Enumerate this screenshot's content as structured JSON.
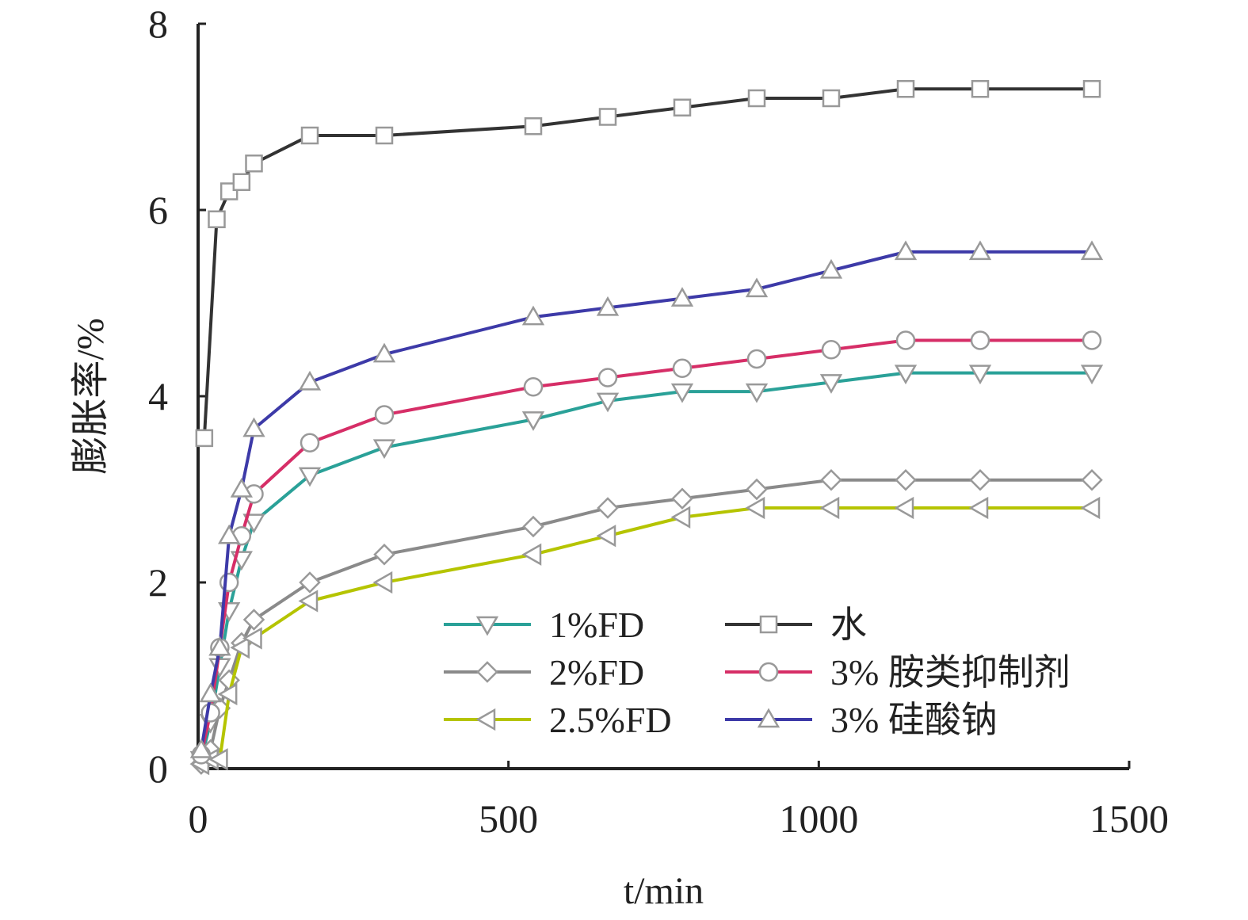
{
  "chart_data": {
    "type": "line",
    "xlabel": "t/min",
    "ylabel": "膨胀率/%",
    "xlim": [
      0,
      1500
    ],
    "ylim": [
      0,
      8
    ],
    "xticks": [
      "0",
      "500",
      "1000",
      "1500"
    ],
    "yticks": [
      "0",
      "2",
      "4",
      "6",
      "8"
    ],
    "grid": false,
    "legend_position": "bottom-right",
    "series": [
      {
        "name": "1%FD",
        "color": "#2aa198",
        "marker": "triangle-down",
        "x": [
          5,
          20,
          35,
          50,
          70,
          90,
          180,
          300,
          540,
          660,
          780,
          900,
          1020,
          1140,
          1260,
          1440
        ],
        "y": [
          0.1,
          0.5,
          1.1,
          1.7,
          2.25,
          2.65,
          3.15,
          3.45,
          3.75,
          3.95,
          4.05,
          4.05,
          4.15,
          4.25,
          4.25,
          4.25
        ]
      },
      {
        "name": "2%FD",
        "color": "#8a8a8a",
        "marker": "diamond",
        "x": [
          5,
          20,
          35,
          50,
          70,
          90,
          180,
          300,
          540,
          660,
          780,
          900,
          1020,
          1140,
          1260,
          1440
        ],
        "y": [
          0.05,
          0.2,
          0.65,
          0.95,
          1.35,
          1.6,
          2.0,
          2.3,
          2.6,
          2.8,
          2.9,
          3.0,
          3.1,
          3.1,
          3.1,
          3.1
        ]
      },
      {
        "name": "2.5%FD",
        "color": "#b5c400",
        "marker": "triangle-left",
        "x": [
          5,
          20,
          35,
          50,
          70,
          90,
          180,
          300,
          540,
          660,
          780,
          900,
          1020,
          1140,
          1260,
          1440
        ],
        "y": [
          0.05,
          0.1,
          0.1,
          0.8,
          1.3,
          1.4,
          1.8,
          2.0,
          2.3,
          2.5,
          2.7,
          2.8,
          2.8,
          2.8,
          2.8,
          2.8
        ]
      },
      {
        "name": "水",
        "color": "#333333",
        "marker": "square",
        "x": [
          10,
          30,
          50,
          70,
          90,
          180,
          300,
          540,
          660,
          780,
          900,
          1020,
          1140,
          1260,
          1440
        ],
        "y": [
          3.55,
          5.9,
          6.2,
          6.3,
          6.5,
          6.8,
          6.8,
          6.9,
          7.0,
          7.1,
          7.2,
          7.2,
          7.3,
          7.3,
          7.3
        ]
      },
      {
        "name": "3% 胺类抑制剂",
        "color": "#d62e67",
        "marker": "circle",
        "x": [
          5,
          20,
          35,
          50,
          70,
          90,
          180,
          300,
          540,
          660,
          780,
          900,
          1020,
          1140,
          1260,
          1440
        ],
        "y": [
          0.15,
          0.6,
          1.3,
          2.0,
          2.5,
          2.95,
          3.5,
          3.8,
          4.1,
          4.2,
          4.3,
          4.4,
          4.5,
          4.6,
          4.6,
          4.6
        ]
      },
      {
        "name": "3% 硅酸钠",
        "color": "#3d3aa8",
        "marker": "triangle-up",
        "x": [
          5,
          20,
          35,
          50,
          70,
          90,
          180,
          300,
          540,
          660,
          780,
          900,
          1020,
          1140,
          1260,
          1440
        ],
        "y": [
          0.2,
          0.8,
          1.3,
          2.5,
          3.0,
          3.65,
          4.15,
          4.45,
          4.85,
          4.95,
          5.05,
          5.15,
          5.35,
          5.55,
          5.55,
          5.55
        ]
      }
    ]
  }
}
